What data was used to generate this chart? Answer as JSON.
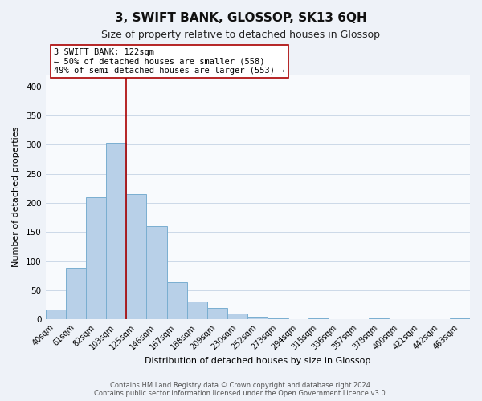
{
  "title": "3, SWIFT BANK, GLOSSOP, SK13 6QH",
  "subtitle": "Size of property relative to detached houses in Glossop",
  "xlabel": "Distribution of detached houses by size in Glossop",
  "ylabel": "Number of detached properties",
  "bar_color": "#b8d0e8",
  "bar_edge_color": "#7aaed0",
  "marker_color": "#aa0000",
  "categories": [
    "40sqm",
    "61sqm",
    "82sqm",
    "103sqm",
    "125sqm",
    "146sqm",
    "167sqm",
    "188sqm",
    "209sqm",
    "230sqm",
    "252sqm",
    "273sqm",
    "294sqm",
    "315sqm",
    "336sqm",
    "357sqm",
    "378sqm",
    "400sqm",
    "421sqm",
    "442sqm",
    "463sqm"
  ],
  "values": [
    17,
    89,
    210,
    303,
    215,
    160,
    64,
    31,
    19,
    10,
    4,
    2,
    0,
    1,
    0,
    0,
    1,
    0,
    0,
    0,
    2
  ],
  "ylim": [
    0,
    420
  ],
  "yticks": [
    0,
    50,
    100,
    150,
    200,
    250,
    300,
    350,
    400
  ],
  "annotation_title": "3 SWIFT BANK: 122sqm",
  "annotation_line1": "← 50% of detached houses are smaller (558)",
  "annotation_line2": "49% of semi-detached houses are larger (553) →",
  "footnote1": "Contains HM Land Registry data © Crown copyright and database right 2024.",
  "footnote2": "Contains public sector information licensed under the Open Government Licence v3.0.",
  "background_color": "#eef2f8",
  "plot_bg_color": "#f8fafd",
  "grid_color": "#ccd8e8",
  "title_fontsize": 11,
  "subtitle_fontsize": 9,
  "axis_label_fontsize": 8,
  "tick_fontsize": 7,
  "footnote_fontsize": 6
}
